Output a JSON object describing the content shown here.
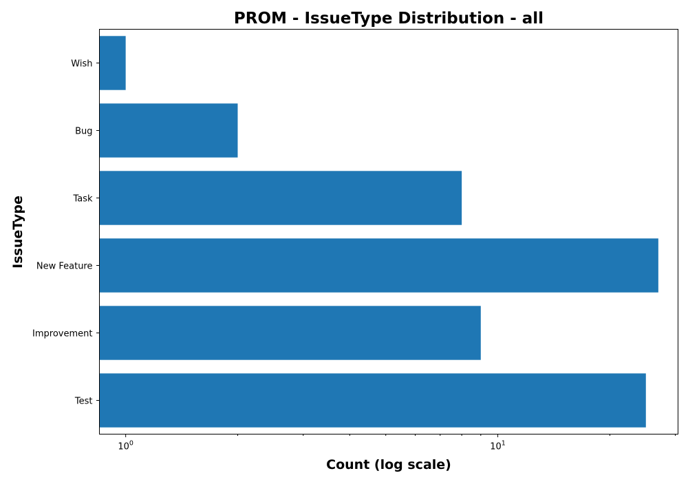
{
  "chart_data": {
    "type": "bar",
    "orientation": "horizontal",
    "title": "PROM - IssueType Distribution - all",
    "xlabel": "Count (log scale)",
    "ylabel": "IssueType",
    "x_scale": "log",
    "xlim": [
      0.85,
      30.5
    ],
    "categories": [
      "Wish",
      "Bug",
      "Task",
      "New Feature",
      "Improvement",
      "Test"
    ],
    "values": [
      1,
      2,
      8,
      27,
      9,
      25
    ],
    "x_ticks": [
      {
        "value": 1,
        "base": "10",
        "exp": "0"
      },
      {
        "value": 10,
        "base": "10",
        "exp": "1"
      }
    ],
    "x_minor_ticks": [
      2,
      3,
      4,
      5,
      6,
      7,
      8,
      9,
      20,
      30
    ],
    "bar_color": "#1f77b4",
    "grid": false,
    "legend": "none"
  }
}
